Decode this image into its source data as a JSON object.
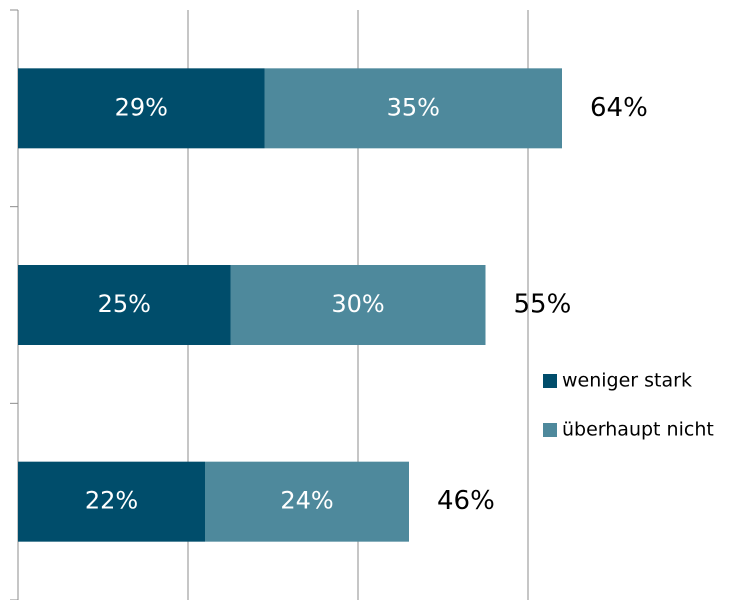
{
  "chart_data": {
    "type": "stacked_barh",
    "categories": [
      null,
      null,
      null
    ],
    "series": [
      {
        "name": "weniger stark",
        "color": "#004d6b",
        "values": [
          29,
          25,
          22
        ],
        "value_labels": [
          "29%",
          "25%",
          "22%"
        ]
      },
      {
        "name": "überhaupt nicht",
        "color": "#4e899c",
        "values": [
          35,
          30,
          24
        ],
        "value_labels": [
          "35%",
          "30%",
          "24%"
        ]
      }
    ],
    "totals": {
      "values": [
        64,
        55,
        46
      ],
      "value_labels": [
        "64%",
        "55%",
        "46%"
      ]
    },
    "xlim": [
      0,
      85
    ],
    "xticks": [
      0,
      20,
      40,
      60
    ],
    "grid": true,
    "legend": "right"
  }
}
